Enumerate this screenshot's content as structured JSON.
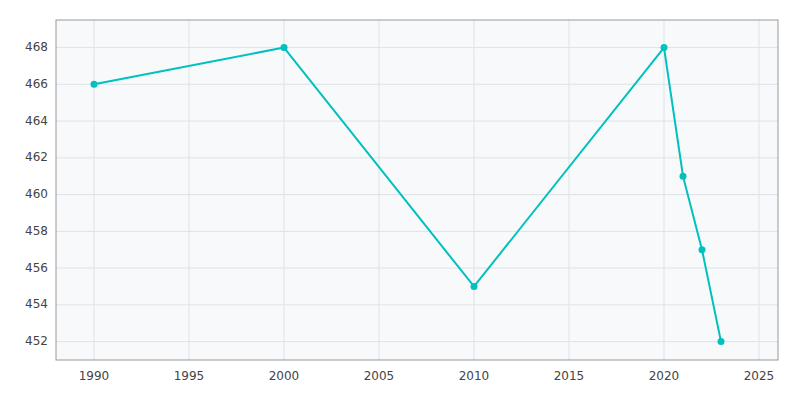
{
  "chart_data": {
    "type": "line",
    "x": [
      1990,
      2000,
      2010,
      2020,
      2021,
      2022,
      2023
    ],
    "values": [
      466,
      468,
      455,
      468,
      461,
      457,
      452
    ],
    "color": "#00C0C0",
    "marker": "circle",
    "xlim": [
      1988,
      2026
    ],
    "ylim": [
      451.0,
      469.5
    ],
    "xticks": [
      1990,
      1995,
      2000,
      2005,
      2010,
      2015,
      2020,
      2025
    ],
    "yticks": [
      452,
      454,
      456,
      458,
      460,
      462,
      464,
      466,
      468
    ],
    "grid": true
  }
}
